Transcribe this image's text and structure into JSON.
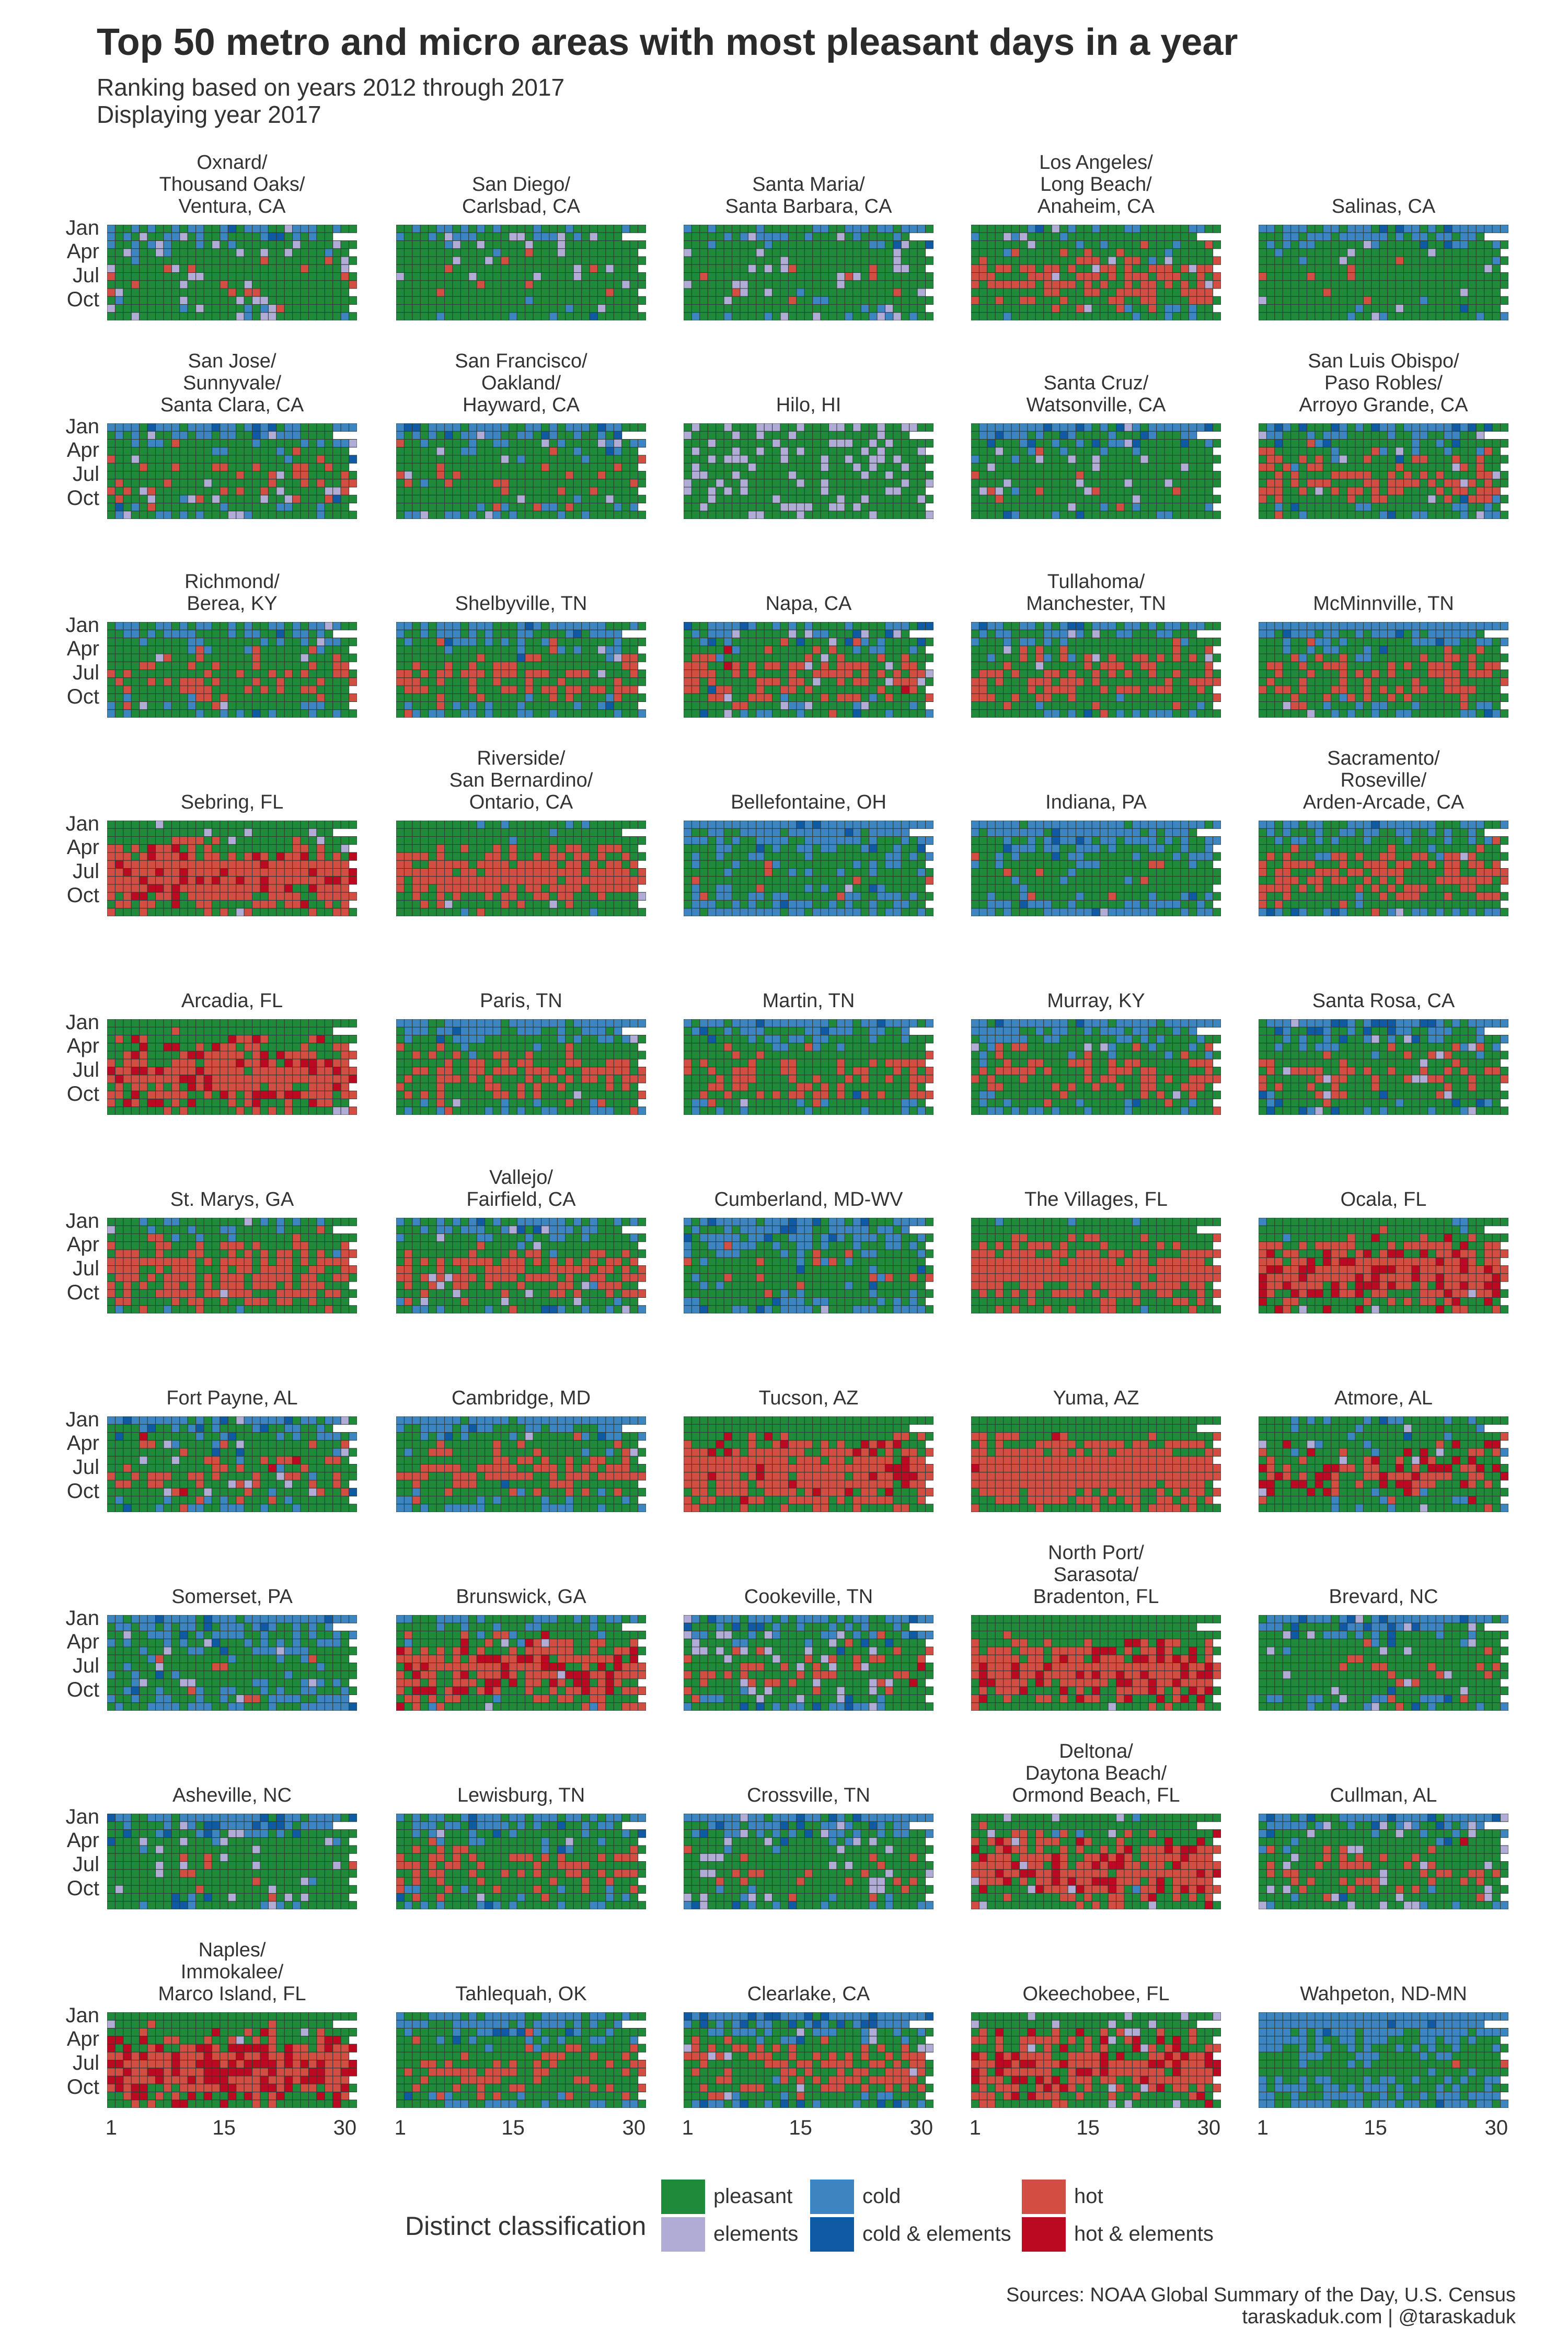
{
  "title": "Top 50 metro and micro areas with most pleasant days in a year",
  "subtitle": "Ranking based on years 2012 through 2017",
  "subtitle2": "Displaying year 2017",
  "legend": {
    "title": "Distinct classification",
    "items": [
      {
        "label": "pleasant",
        "color": "#1f8a3a"
      },
      {
        "label": "elements",
        "color": "#b1acd6"
      },
      {
        "label": "cold",
        "color": "#3d85c0"
      },
      {
        "label": "cold & elements",
        "color": "#0f5aa2"
      },
      {
        "label": "hot",
        "color": "#d24e43"
      },
      {
        "label": "hot & elements",
        "color": "#bb0921"
      }
    ]
  },
  "source_line1": "Sources: NOAA Global Summary of the Day, U.S. Census",
  "source_line2": "taraskaduk.com | @taraskaduk",
  "chart_data": {
    "type": "heatmap",
    "year": 2017,
    "x_axis": {
      "ticks": [
        "1",
        "15",
        "30"
      ],
      "range": [
        1,
        31
      ],
      "meaning": "day of month"
    },
    "y_axis": {
      "ticks": [
        "Jan",
        "Apr",
        "Jul",
        "Oct"
      ],
      "range": [
        1,
        12
      ],
      "meaning": "month"
    },
    "classes": [
      "pleasant",
      "elements",
      "cold",
      "cold & elements",
      "hot",
      "hot & elements"
    ],
    "panels": [
      {
        "name": "Oxnard/\nThousand Oaks/\nVentura, CA",
        "dominant": "pleasant",
        "elements": 0.1,
        "cold": 0.12,
        "hot": 0.04,
        "hotel": 0.0,
        "coldel": 0.02
      },
      {
        "name": "San Diego/\nCarlsbad, CA",
        "dominant": "pleasant",
        "elements": 0.05,
        "cold": 0.12,
        "hot": 0.04,
        "hotel": 0.0,
        "coldel": 0.01
      },
      {
        "name": "Santa Maria/\nSanta Barbara, CA",
        "dominant": "pleasant",
        "elements": 0.08,
        "cold": 0.2,
        "hot": 0.03,
        "hotel": 0.0,
        "coldel": 0.03
      },
      {
        "name": "Los Angeles/\nLong Beach/\nAnaheim, CA",
        "dominant": "pleasant",
        "elements": 0.04,
        "cold": 0.1,
        "hot": 0.25,
        "hotel": 0.0,
        "coldel": 0.01
      },
      {
        "name": "Salinas, CA",
        "dominant": "pleasant",
        "elements": 0.06,
        "cold": 0.25,
        "hot": 0.02,
        "hotel": 0.0,
        "coldel": 0.02
      },
      {
        "name": "San Jose/\nSunnyvale/\nSanta Clara, CA",
        "dominant": "pleasant",
        "elements": 0.08,
        "cold": 0.28,
        "hot": 0.1,
        "hotel": 0.0,
        "coldel": 0.03
      },
      {
        "name": "San Francisco/\nOakland/\nHayward, CA",
        "dominant": "pleasant",
        "elements": 0.06,
        "cold": 0.3,
        "hot": 0.05,
        "hotel": 0.0,
        "coldel": 0.03
      },
      {
        "name": "Hilo, HI",
        "dominant": "pleasant",
        "elements": 0.22,
        "cold": 0.0,
        "hot": 0.0,
        "hotel": 0.0,
        "coldel": 0.0
      },
      {
        "name": "Santa Cruz/\nWatsonville, CA",
        "dominant": "pleasant",
        "elements": 0.06,
        "cold": 0.3,
        "hot": 0.05,
        "hotel": 0.0,
        "coldel": 0.05
      },
      {
        "name": "San Luis Obispo/\nPaso Robles/\nArroyo Grande, CA",
        "dominant": "pleasant",
        "elements": 0.05,
        "cold": 0.3,
        "hot": 0.22,
        "hotel": 0.0,
        "coldel": 0.03
      },
      {
        "name": "Richmond/\nBerea, KY",
        "dominant": "pleasant",
        "elements": 0.02,
        "cold": 0.28,
        "hot": 0.15,
        "hotel": 0.0,
        "coldel": 0.02
      },
      {
        "name": "Shelbyville, TN",
        "dominant": "pleasant",
        "elements": 0.02,
        "cold": 0.3,
        "hot": 0.18,
        "hotel": 0.0,
        "coldel": 0.02
      },
      {
        "name": "Napa, CA",
        "dominant": "pleasant",
        "elements": 0.08,
        "cold": 0.3,
        "hot": 0.2,
        "hotel": 0.01,
        "coldel": 0.06
      },
      {
        "name": "Tullahoma/\nManchester, TN",
        "dominant": "pleasant",
        "elements": 0.02,
        "cold": 0.3,
        "hot": 0.2,
        "hotel": 0.0,
        "coldel": 0.02
      },
      {
        "name": "McMinnville, TN",
        "dominant": "pleasant",
        "elements": 0.01,
        "cold": 0.38,
        "hot": 0.22,
        "hotel": 0.0,
        "coldel": 0.01
      },
      {
        "name": "Sebring, FL",
        "dominant": "hot",
        "elements": 0.05,
        "cold": 0.0,
        "hot": 0.5,
        "hotel": 0.12,
        "coldel": 0.0
      },
      {
        "name": "Riverside/\nSan Bernardino/\nOntario, CA",
        "dominant": "pleasant",
        "elements": 0.01,
        "cold": 0.05,
        "hot": 0.42,
        "hotel": 0.0,
        "coldel": 0.0
      },
      {
        "name": "Bellefontaine, OH",
        "dominant": "cold",
        "elements": 0.01,
        "cold": 0.6,
        "hot": 0.03,
        "hotel": 0.0,
        "coldel": 0.02
      },
      {
        "name": "Indiana, PA",
        "dominant": "cold",
        "elements": 0.01,
        "cold": 0.55,
        "hot": 0.02,
        "hotel": 0.0,
        "coldel": 0.02
      },
      {
        "name": "Sacramento/\nRoseville/\nArden-Arcade, CA",
        "dominant": "pleasant",
        "elements": 0.01,
        "cold": 0.3,
        "hot": 0.3,
        "hotel": 0.0,
        "coldel": 0.02
      },
      {
        "name": "Arcadia, FL",
        "dominant": "hot",
        "elements": 0.03,
        "cold": 0.0,
        "hot": 0.5,
        "hotel": 0.1,
        "coldel": 0.0
      },
      {
        "name": "Paris, TN",
        "dominant": "pleasant",
        "elements": 0.01,
        "cold": 0.35,
        "hot": 0.22,
        "hotel": 0.0,
        "coldel": 0.01
      },
      {
        "name": "Martin, TN",
        "dominant": "pleasant",
        "elements": 0.01,
        "cold": 0.35,
        "hot": 0.22,
        "hotel": 0.0,
        "coldel": 0.01
      },
      {
        "name": "Murray, KY",
        "dominant": "pleasant",
        "elements": 0.01,
        "cold": 0.35,
        "hot": 0.22,
        "hotel": 0.0,
        "coldel": 0.01
      },
      {
        "name": "Santa Rosa, CA",
        "dominant": "pleasant",
        "elements": 0.05,
        "cold": 0.35,
        "hot": 0.12,
        "hotel": 0.0,
        "coldel": 0.08
      },
      {
        "name": "St. Marys, GA",
        "dominant": "hot",
        "elements": 0.01,
        "cold": 0.1,
        "hot": 0.45,
        "hotel": 0.0,
        "coldel": 0.0
      },
      {
        "name": "Vallejo/\nFairfield, CA",
        "dominant": "pleasant",
        "elements": 0.05,
        "cold": 0.25,
        "hot": 0.3,
        "hotel": 0.0,
        "coldel": 0.02
      },
      {
        "name": "Cumberland, MD-WV",
        "dominant": "cold",
        "elements": 0.01,
        "cold": 0.5,
        "hot": 0.05,
        "hotel": 0.0,
        "coldel": 0.02
      },
      {
        "name": "The Villages, FL",
        "dominant": "hot",
        "elements": 0.0,
        "cold": 0.02,
        "hot": 0.55,
        "hotel": 0.0,
        "coldel": 0.0
      },
      {
        "name": "Ocala, FL",
        "dominant": "hot",
        "elements": 0.01,
        "cold": 0.02,
        "hot": 0.45,
        "hotel": 0.18,
        "coldel": 0.0
      },
      {
        "name": "Fort Payne, AL",
        "dominant": "pleasant",
        "elements": 0.05,
        "cold": 0.3,
        "hot": 0.12,
        "hotel": 0.02,
        "coldel": 0.03
      },
      {
        "name": "Cambridge, MD",
        "dominant": "pleasant",
        "elements": 0.01,
        "cold": 0.4,
        "hot": 0.22,
        "hotel": 0.0,
        "coldel": 0.01
      },
      {
        "name": "Tucson, AZ",
        "dominant": "hot",
        "elements": 0.0,
        "cold": 0.0,
        "hot": 0.55,
        "hotel": 0.05,
        "coldel": 0.0
      },
      {
        "name": "Yuma, AZ",
        "dominant": "hot",
        "elements": 0.0,
        "cold": 0.0,
        "hot": 0.65,
        "hotel": 0.01,
        "coldel": 0.0
      },
      {
        "name": "Atmore, AL",
        "dominant": "pleasant",
        "elements": 0.05,
        "cold": 0.12,
        "hot": 0.3,
        "hotel": 0.12,
        "coldel": 0.01
      },
      {
        "name": "Somerset, PA",
        "dominant": "cold",
        "elements": 0.05,
        "cold": 0.5,
        "hot": 0.03,
        "hotel": 0.0,
        "coldel": 0.03
      },
      {
        "name": "Brunswick, GA",
        "dominant": "hot",
        "elements": 0.06,
        "cold": 0.12,
        "hot": 0.35,
        "hotel": 0.15,
        "coldel": 0.0
      },
      {
        "name": "Cookeville, TN",
        "dominant": "pleasant",
        "elements": 0.08,
        "cold": 0.3,
        "hot": 0.12,
        "hotel": 0.02,
        "coldel": 0.05
      },
      {
        "name": "North Port/\nSarasota/\nBradenton, FL",
        "dominant": "hot",
        "elements": 0.01,
        "cold": 0.0,
        "hot": 0.45,
        "hotel": 0.15,
        "coldel": 0.0
      },
      {
        "name": "Brevard, NC",
        "dominant": "pleasant",
        "elements": 0.06,
        "cold": 0.35,
        "hot": 0.05,
        "hotel": 0.0,
        "coldel": 0.05
      },
      {
        "name": "Asheville, NC",
        "dominant": "pleasant",
        "elements": 0.08,
        "cold": 0.38,
        "hot": 0.03,
        "hotel": 0.0,
        "coldel": 0.05
      },
      {
        "name": "Lewisburg, TN",
        "dominant": "pleasant",
        "elements": 0.02,
        "cold": 0.3,
        "hot": 0.2,
        "hotel": 0.0,
        "coldel": 0.02
      },
      {
        "name": "Crossville, TN",
        "dominant": "pleasant",
        "elements": 0.1,
        "cold": 0.35,
        "hot": 0.04,
        "hotel": 0.0,
        "coldel": 0.05
      },
      {
        "name": "Deltona/\nDaytona Beach/\nOrmond Beach, FL",
        "dominant": "hot",
        "elements": 0.03,
        "cold": 0.05,
        "hot": 0.4,
        "hotel": 0.18,
        "coldel": 0.0
      },
      {
        "name": "Cullman, AL",
        "dominant": "pleasant",
        "elements": 0.1,
        "cold": 0.28,
        "hot": 0.12,
        "hotel": 0.01,
        "coldel": 0.05
      },
      {
        "name": "Naples/\nImmokalee/\nMarco Island, FL",
        "dominant": "hot",
        "elements": 0.02,
        "cold": 0.0,
        "hot": 0.4,
        "hotel": 0.25,
        "coldel": 0.0
      },
      {
        "name": "Tahlequah, OK",
        "dominant": "pleasant",
        "elements": 0.01,
        "cold": 0.35,
        "hot": 0.2,
        "hotel": 0.0,
        "coldel": 0.02
      },
      {
        "name": "Clearlake, CA",
        "dominant": "pleasant",
        "elements": 0.03,
        "cold": 0.35,
        "hot": 0.25,
        "hotel": 0.0,
        "coldel": 0.06
      },
      {
        "name": "Okeechobee, FL",
        "dominant": "hot",
        "elements": 0.08,
        "cold": 0.0,
        "hot": 0.4,
        "hotel": 0.15,
        "coldel": 0.0
      },
      {
        "name": "Wahpeton, ND-MN",
        "dominant": "cold",
        "elements": 0.0,
        "cold": 0.7,
        "hot": 0.01,
        "hotel": 0.0,
        "coldel": 0.01
      }
    ]
  }
}
